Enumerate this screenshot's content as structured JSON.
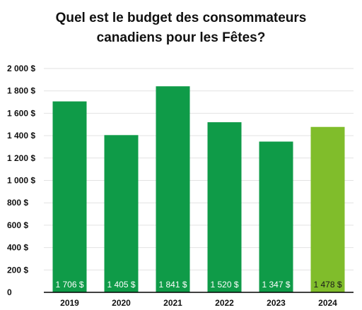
{
  "chart_data": {
    "type": "bar",
    "title_lines": [
      "Quel est le budget des consommateurs",
      "canadiens pour les Fêtes?"
    ],
    "categories": [
      "2019",
      "2020",
      "2021",
      "2022",
      "2023",
      "2024"
    ],
    "values": [
      1706,
      1405,
      1841,
      1520,
      1347,
      1478
    ],
    "data_labels": [
      "1 706 $",
      "1 405 $",
      "1 841 $",
      "1 520 $",
      "1 347 $",
      "1 478 $"
    ],
    "yticks": [
      0,
      200,
      400,
      600,
      800,
      1000,
      1200,
      1400,
      1600,
      1800,
      2000
    ],
    "ytick_labels": [
      "0",
      "200 $",
      "400 $",
      "600 $",
      "800 $",
      "1 000 $",
      "1 200 $",
      "1 400 $",
      "1 600 $",
      "1 800 $",
      "2 000 $"
    ],
    "ylim": [
      0,
      2000
    ],
    "grid": true,
    "legend": "none",
    "colors": {
      "bar": "#0f9b48",
      "highlight_bar": "#80bd2b",
      "label_on_bar": "#ffffff",
      "label_on_highlight": "#1a1a1a",
      "grid": "#e2e2e2",
      "axis": "#000000"
    },
    "highlight_index": 5
  }
}
